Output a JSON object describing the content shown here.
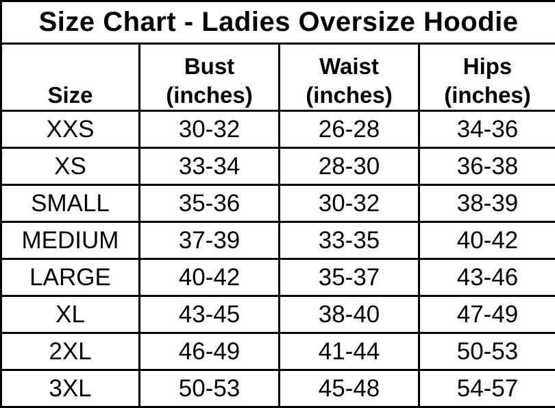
{
  "title": "Size Chart - Ladies Oversize Hoodie",
  "columns": {
    "size": {
      "label": "Size"
    },
    "bust": {
      "label": "Bust",
      "sub": "(inches)"
    },
    "waist": {
      "label": "Waist",
      "sub": "(inches)"
    },
    "hips": {
      "label": "Hips",
      "sub": "(inches)"
    }
  },
  "rows": [
    {
      "size": "XXS",
      "bust": "30-32",
      "waist": "26-28",
      "hips": "34-36"
    },
    {
      "size": "XS",
      "bust": "33-34",
      "waist": "28-30",
      "hips": "36-38"
    },
    {
      "size": "SMALL",
      "bust": "35-36",
      "waist": "30-32",
      "hips": "38-39"
    },
    {
      "size": "MEDIUM",
      "bust": "37-39",
      "waist": "33-35",
      "hips": "40-42"
    },
    {
      "size": "LARGE",
      "bust": "40-42",
      "waist": "35-37",
      "hips": "43-46"
    },
    {
      "size": "XL",
      "bust": "43-45",
      "waist": "38-40",
      "hips": "47-49"
    },
    {
      "size": "2XL",
      "bust": "46-49",
      "waist": "41-44",
      "hips": "50-53"
    },
    {
      "size": "3XL",
      "bust": "50-53",
      "waist": "45-48",
      "hips": "54-57"
    }
  ],
  "colors": {
    "text": "#000000",
    "background": "#ffffff",
    "border": "#000000"
  },
  "chart_data": {
    "type": "table",
    "title": "Size Chart - Ladies Oversize Hoodie",
    "column_headers": [
      "Size",
      "Bust (inches)",
      "Waist (inches)",
      "Hips (inches)"
    ],
    "rows": [
      [
        "XXS",
        "30-32",
        "26-28",
        "34-36"
      ],
      [
        "XS",
        "33-34",
        "28-30",
        "36-38"
      ],
      [
        "SMALL",
        "35-36",
        "30-32",
        "38-39"
      ],
      [
        "MEDIUM",
        "37-39",
        "33-35",
        "40-42"
      ],
      [
        "LARGE",
        "40-42",
        "35-37",
        "43-46"
      ],
      [
        "XL",
        "43-45",
        "38-40",
        "47-49"
      ],
      [
        "2XL",
        "46-49",
        "41-44",
        "50-53"
      ],
      [
        "3XL",
        "50-53",
        "45-48",
        "54-57"
      ]
    ]
  }
}
